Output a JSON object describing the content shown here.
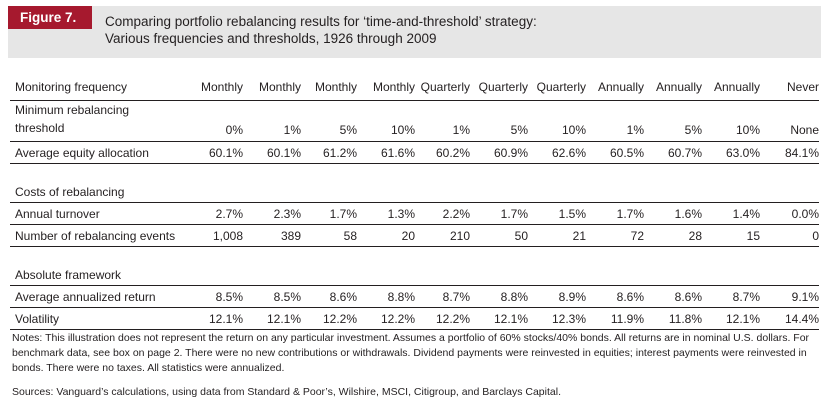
{
  "figure": {
    "label": "Figure 7.",
    "title_line1": "Comparing portfolio rebalancing results for ‘time-and-threshold’ strategy:",
    "title_line2": "Various frequencies and thresholds, 1926 through 2009"
  },
  "colors": {
    "accent": "#a6192e",
    "header_bg": "#e6e6e6",
    "text": "#231f20"
  },
  "table": {
    "monitoring_label": "Monitoring frequency",
    "frequencies": [
      "Monthly",
      "Monthly",
      "Monthly",
      "Monthly",
      "Quarterly",
      "Quarterly",
      "Quarterly",
      "Annually",
      "Annually",
      "Annually",
      "Never"
    ],
    "threshold_label_line1": "Minimum rebalancing",
    "threshold_label_line2": "threshold",
    "thresholds": [
      "0%",
      "1%",
      "5%",
      "10%",
      "1%",
      "5%",
      "10%",
      "1%",
      "5%",
      "10%",
      "None"
    ],
    "equity_label": "Average equity allocation",
    "equity": [
      "60.1%",
      "60.1%",
      "61.2%",
      "61.6%",
      "60.2%",
      "60.9%",
      "62.6%",
      "60.5%",
      "60.7%",
      "63.0%",
      "84.1%"
    ],
    "costs_heading": "Costs of rebalancing",
    "turnover_label": "Annual turnover",
    "turnover": [
      "2.7%",
      "2.3%",
      "1.7%",
      "1.3%",
      "2.2%",
      "1.7%",
      "1.5%",
      "1.7%",
      "1.6%",
      "1.4%",
      "0.0%"
    ],
    "events_label": "Number of rebalancing events",
    "events": [
      "1,008",
      "389",
      "58",
      "20",
      "210",
      "50",
      "21",
      "72",
      "28",
      "15",
      "0"
    ],
    "absolute_heading": "Absolute framework",
    "return_label": "Average annualized return",
    "returns": [
      "8.5%",
      "8.5%",
      "8.6%",
      "8.8%",
      "8.7%",
      "8.8%",
      "8.9%",
      "8.6%",
      "8.6%",
      "8.7%",
      "9.1%"
    ],
    "volatility_label": "Volatility",
    "volatility": [
      "12.1%",
      "12.1%",
      "12.2%",
      "12.2%",
      "12.2%",
      "12.1%",
      "12.3%",
      "11.9%",
      "11.8%",
      "12.1%",
      "14.4%"
    ]
  },
  "notes": "Notes: This illustration does not represent the return on any particular investment. Assumes a portfolio of 60% stocks/40% bonds. All returns are in nominal U.S. dollars. For benchmark data, see box on page 2. There were no new contributions or withdrawals. Dividend payments were reinvested in equities; interest payments were reinvested in bonds. There were no taxes. All statistics were annualized.",
  "sources": "Sources: Vanguard’s calculations, using data from Standard & Poor’s, Wilshire, MSCI, Citigroup, and Barclays Capital."
}
